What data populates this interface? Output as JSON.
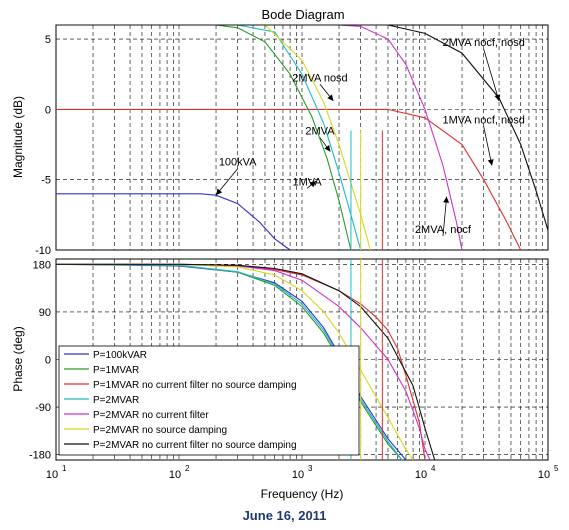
{
  "title": "Bode Diagram",
  "caption": "June 16, 2011",
  "xlabel": "Frequency  (Hz)",
  "x_ticks": [
    {
      "value": 10,
      "label": "10",
      "exp": "1"
    },
    {
      "value": 100,
      "label": "10",
      "exp": "2"
    },
    {
      "value": 1000,
      "label": "10",
      "exp": "3"
    },
    {
      "value": 10000,
      "label": "10",
      "exp": "4"
    },
    {
      "value": 100000,
      "label": "10",
      "exp": "5"
    }
  ],
  "xlim": [
    10,
    100000
  ],
  "x_scale": "log",
  "grid": true,
  "colors": {
    "P=100kVAR": "#3333cc",
    "P=1MVAR": "#2e9b2e",
    "P=1MVAR no current filter no source damping": "#e03030",
    "P=2MVAR": "#21b8c8",
    "P=2MVAR no current filter": "#cc33cc",
    "P=2MVAR no source damping": "#d8d820",
    "P=2MVAR no current filter no source damping": "#111111"
  },
  "chart_data": [
    {
      "type": "line",
      "panel": "magnitude",
      "ylabel": "Magnitude (dB)",
      "ylim": [
        -10,
        6
      ],
      "y_ticks": [
        5,
        0,
        -5,
        -10
      ],
      "x_scale": "log",
      "series": [
        {
          "name": "P=100kVAR",
          "x": [
            10,
            100,
            150,
            200,
            300,
            450,
            600,
            800
          ],
          "y": [
            -6,
            -6,
            -6,
            -6.1,
            -6.7,
            -8.0,
            -9.2,
            -10
          ]
        },
        {
          "name": "P=1MVAR",
          "x": [
            10,
            100,
            200,
            300,
            500,
            800,
            1200,
            1600,
            2000,
            2500
          ],
          "y": [
            6,
            6,
            6,
            5.8,
            4.8,
            2.5,
            -0.5,
            -3.5,
            -6.5,
            -10
          ]
        },
        {
          "name": "P=1MVAR no current filter no source damping",
          "x": [
            10,
            1000,
            5000,
            10000,
            20000,
            30000,
            45000,
            60000
          ],
          "y": [
            0,
            0,
            0,
            -0.6,
            -2.5,
            -5.0,
            -7.8,
            -10
          ]
        },
        {
          "name": "P=2MVAR",
          "x": [
            10,
            300,
            600,
            1000,
            1500,
            2000,
            2500,
            3000
          ],
          "y": [
            6,
            6,
            5.5,
            2.5,
            -1.0,
            -4.5,
            -7.5,
            -10
          ]
        },
        {
          "name": "P=2MVAR no current filter",
          "x": [
            10,
            2000,
            3000,
            5000,
            7000,
            10000,
            14000,
            18000,
            20000
          ],
          "y": [
            6,
            6,
            5.9,
            5.0,
            3.2,
            0.0,
            -4.0,
            -8.0,
            -10
          ]
        },
        {
          "name": "P=2MVAR no source damping",
          "x": [
            10,
            500,
            1000,
            1500,
            2000,
            3000,
            3600
          ],
          "y": [
            6,
            6,
            3.5,
            0.5,
            -2.5,
            -7.5,
            -10
          ]
        },
        {
          "name": "P=2MVAR no current filter no source damping",
          "x": [
            10,
            5000,
            10000,
            20000,
            40000,
            60000,
            80000,
            100000
          ],
          "y": [
            6,
            6,
            5.4,
            4.0,
            0.8,
            -2.5,
            -5.8,
            -8.6
          ]
        }
      ],
      "annotations": [
        {
          "text": "100kVA",
          "at": [
            300,
            -4.0
          ],
          "target": [
            200,
            -6.1
          ]
        },
        {
          "text": "1MVA",
          "at": [
            1100,
            -5.4
          ],
          "target": [
            1300,
            -5.1
          ]
        },
        {
          "text": "2MVA",
          "at": [
            1400,
            -1.8
          ],
          "target": [
            1700,
            -3.0
          ]
        },
        {
          "text": "2MVA nosd",
          "at": [
            1400,
            2.0
          ],
          "target": [
            1800,
            0.6
          ]
        },
        {
          "text": "2MVA nocf, nosd",
          "at": [
            30000,
            4.5
          ],
          "target": [
            40000,
            0.6
          ]
        },
        {
          "text": "1MVA nocf, nosd",
          "at": [
            30000,
            -1.0
          ],
          "target": [
            35000,
            -4.0
          ]
        },
        {
          "text": "2MVA, nocf",
          "at": [
            14000,
            -8.8
          ],
          "target": [
            15000,
            -6.2
          ]
        }
      ]
    },
    {
      "type": "line",
      "panel": "phase",
      "ylabel": "Phase (deg)",
      "ylim": [
        -190,
        190
      ],
      "y_ticks": [
        180,
        90,
        0,
        -90,
        -180
      ],
      "x_scale": "log",
      "series": [
        {
          "name": "P=100kVAR",
          "x": [
            10,
            100,
            300,
            600,
            1000,
            1500,
            2000,
            3000,
            5000,
            7000
          ],
          "y": [
            180,
            177,
            165,
            145,
            110,
            60,
            10,
            -70,
            -150,
            -190
          ]
        },
        {
          "name": "P=1MVAR",
          "x": [
            10,
            100,
            300,
            600,
            1000,
            1500,
            2000,
            3000,
            5000,
            6500
          ],
          "y": [
            180,
            178,
            165,
            140,
            100,
            50,
            0,
            -80,
            -160,
            -190
          ]
        },
        {
          "name": "P=1MVAR no current filter no source damping",
          "x": [
            10,
            100,
            300,
            600,
            1000,
            2000,
            3000,
            4000,
            5000,
            6000,
            7000,
            9000,
            10000
          ],
          "y": [
            180,
            180,
            178,
            170,
            160,
            130,
            105,
            80,
            55,
            20,
            -30,
            -120,
            -190
          ]
        },
        {
          "name": "P=2MVAR",
          "x": [
            10,
            100,
            300,
            600,
            1000,
            1500,
            2000,
            3000,
            5000,
            6500
          ],
          "y": [
            180,
            178,
            166,
            143,
            105,
            55,
            5,
            -75,
            -155,
            -190
          ]
        },
        {
          "name": "P=2MVAR no current filter",
          "x": [
            10,
            100,
            300,
            600,
            1000,
            2000,
            3000,
            5000,
            7000,
            9000,
            10000,
            11000
          ],
          "y": [
            180,
            180,
            177,
            168,
            150,
            100,
            60,
            0,
            -60,
            -130,
            -170,
            -190
          ]
        },
        {
          "name": "P=2MVAR no source damping",
          "x": [
            10,
            100,
            300,
            600,
            1000,
            1500,
            2000,
            3000,
            5000,
            7000,
            8000
          ],
          "y": [
            180,
            180,
            175,
            160,
            130,
            90,
            50,
            -20,
            -110,
            -170,
            -190
          ]
        },
        {
          "name": "P=2MVAR no current filter no source damping",
          "x": [
            10,
            100,
            300,
            600,
            1000,
            2000,
            3000,
            5000,
            8000,
            10000,
            12000
          ],
          "y": [
            180,
            180,
            178,
            172,
            162,
            130,
            100,
            40,
            -50,
            -130,
            -190
          ]
        }
      ]
    }
  ]
}
